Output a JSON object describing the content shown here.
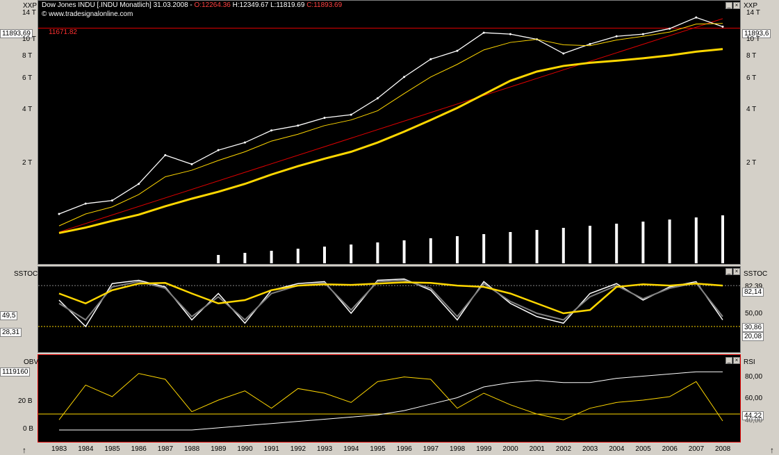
{
  "header": {
    "instrument": "Dow Jones INDU [.INDU  Monatlich] 31.03.2008 -",
    "open": "O:12264.36",
    "high": "H:12349.67",
    "low": "L:11819.69",
    "close": "C:11893.69",
    "website": "© www.tradesignalonline.com"
  },
  "panes": {
    "price": {
      "name_left": "XXP",
      "name_right": "XXP",
      "hline_label": "11671.82",
      "last_left": "11893,69",
      "last_right": "11893,6"
    },
    "stoch": {
      "name_left": "SSTOC",
      "name_right": "SSTOC",
      "box1": "49,5",
      "box2": "28,31",
      "r1": "82,39",
      "r2": "82,14",
      "r3": "50,00",
      "r4": "30,86",
      "r5": "20,08"
    },
    "obv": {
      "name_left": "OBV",
      "name_right": "RSI",
      "box": "1119160",
      "l1": "20 B",
      "l2": "0 B",
      "r1": "80,00",
      "r2": "60,00",
      "r3": "44,22",
      "r4": "40,00"
    }
  },
  "arrows": {
    "left": "↑",
    "right": "↑"
  },
  "colors": {
    "background": "#000000",
    "price": "#ffffff",
    "ma_fast": "#ffd700",
    "ma_slow": "#ffd700",
    "trendline": "#e00000",
    "hline": "#e00000",
    "stoch_fast": "#ffffff",
    "stoch_slow": "#808080",
    "stoch_ma": "#ffd700",
    "obv": "#ffffff",
    "rsi": "#ffd700"
  },
  "chart_data": [
    {
      "type": "line",
      "title": "Dow Jones INDU [.INDU  Monatlich] 31.03.2008",
      "scale": "log",
      "yticks": [
        "2 T",
        "4 T",
        "6 T",
        "8 T",
        "10 T",
        "14 T"
      ],
      "ytick_values": [
        2000,
        4000,
        6000,
        8000,
        10000,
        14000
      ],
      "x": [
        "1983",
        "1984",
        "1985",
        "1986",
        "1987",
        "1988",
        "1989",
        "1990",
        "1991",
        "1992",
        "1993",
        "1994",
        "1995",
        "1996",
        "1997",
        "1998",
        "1999",
        "2000",
        "2001",
        "2002",
        "2003",
        "2004",
        "2005",
        "2006",
        "2007",
        "2008"
      ],
      "series": [
        {
          "values": [
            1050,
            1200,
            1250,
            1550,
            2250,
            2000,
            2400,
            2650,
            3100,
            3300,
            3650,
            3800,
            4700,
            6200,
            7800,
            8700,
            11000,
            10800,
            10100,
            8400,
            9500,
            10500,
            10800,
            11600,
            13400,
            11893
          ]
        },
        {
          "values": [
            900,
            1050,
            1150,
            1350,
            1700,
            1850,
            2100,
            2350,
            2700,
            2950,
            3300,
            3550,
            4000,
            5000,
            6200,
            7300,
            8800,
            9700,
            10100,
            9400,
            9300,
            10000,
            10500,
            11100,
            12300,
            12400
          ]
        },
        {
          "values": [
            820,
            880,
            960,
            1040,
            1160,
            1280,
            1400,
            1550,
            1750,
            1950,
            2150,
            2350,
            2650,
            3050,
            3550,
            4150,
            4950,
            5900,
            6650,
            7150,
            7450,
            7650,
            7900,
            8200,
            8600,
            8900
          ]
        }
      ],
      "hline": 11671.82
    },
    {
      "type": "line",
      "yticks": [
        "20,08",
        "30,86",
        "50,00",
        "82,14"
      ],
      "x": [
        "1983",
        "1984",
        "1985",
        "1986",
        "1987",
        "1988",
        "1989",
        "1990",
        "1991",
        "1992",
        "1993",
        "1994",
        "1995",
        "1996",
        "1997",
        "1998",
        "1999",
        "2000",
        "2001",
        "2002",
        "2003",
        "2004",
        "2005",
        "2006",
        "2007",
        "2008"
      ],
      "series": [
        {
          "values": [
            60,
            20,
            85,
            90,
            80,
            30,
            70,
            25,
            75,
            85,
            88,
            40,
            90,
            92,
            75,
            30,
            88,
            55,
            35,
            25,
            70,
            85,
            60,
            80,
            88,
            30
          ]
        },
        {
          "values": [
            55,
            30,
            80,
            88,
            78,
            35,
            65,
            30,
            70,
            82,
            86,
            45,
            88,
            90,
            78,
            35,
            85,
            58,
            40,
            30,
            65,
            82,
            62,
            78,
            86,
            35
          ]
        },
        {
          "values": [
            70,
            55,
            75,
            85,
            86,
            70,
            55,
            60,
            75,
            82,
            84,
            83,
            85,
            87,
            86,
            82,
            80,
            70,
            55,
            40,
            45,
            80,
            84,
            82,
            85,
            82
          ]
        }
      ]
    },
    {
      "type": "line",
      "yticks_left": [
        "20 B",
        "0 B"
      ],
      "yticks_right": [
        "80,00",
        "60,00",
        "44,22"
      ],
      "x": [
        "1983",
        "1984",
        "1985",
        "1986",
        "1987",
        "1988",
        "1989",
        "1990",
        "1991",
        "1992",
        "1993",
        "1994",
        "1995",
        "1996",
        "1997",
        "1998",
        "1999",
        "2000",
        "2001",
        "2002",
        "2003",
        "2004",
        "2005",
        "2006",
        "2007",
        "2008"
      ],
      "series": [
        {
          "values": [
            0,
            0,
            0,
            0,
            0,
            0,
            1,
            2,
            3,
            4,
            5,
            6,
            7,
            9,
            12,
            15,
            20,
            22,
            23,
            22,
            22,
            24,
            25,
            26,
            27,
            27
          ]
        },
        {
          "values": [
            45,
            75,
            65,
            85,
            80,
            52,
            62,
            70,
            55,
            72,
            68,
            60,
            78,
            82,
            80,
            55,
            68,
            58,
            50,
            45,
            55,
            60,
            62,
            65,
            78,
            44
          ]
        }
      ]
    }
  ]
}
